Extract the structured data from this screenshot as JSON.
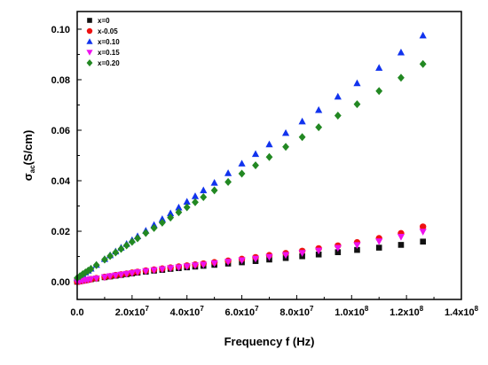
{
  "chart_data": {
    "type": "scatter",
    "xlabel": "Frequency f (Hz)",
    "ylabel_main": "σ",
    "ylabel_sub": "ac",
    "ylabel_unit": "(S/cm)",
    "xlim": [
      0,
      140000000.0
    ],
    "ylim": [
      -0.007,
      0.107
    ],
    "x_ticks": [
      {
        "value": 0,
        "base": "0.0",
        "exp": ""
      },
      {
        "value": 20000000.0,
        "base": "2.0x10",
        "exp": "7"
      },
      {
        "value": 40000000.0,
        "base": "4.0x10",
        "exp": "7"
      },
      {
        "value": 60000000.0,
        "base": "6.0x10",
        "exp": "7"
      },
      {
        "value": 80000000.0,
        "base": "8.0x10",
        "exp": "7"
      },
      {
        "value": 100000000.0,
        "base": "1.0x10",
        "exp": "8"
      },
      {
        "value": 120000000.0,
        "base": "1.2x10",
        "exp": "8"
      },
      {
        "value": 140000000.0,
        "base": "1.4x10",
        "exp": "8"
      }
    ],
    "y_ticks": [
      {
        "value": 0.0,
        "label": "0.00"
      },
      {
        "value": 0.02,
        "label": "0.02"
      },
      {
        "value": 0.04,
        "label": "0.04"
      },
      {
        "value": 0.06,
        "label": "0.06"
      },
      {
        "value": 0.08,
        "label": "0.08"
      },
      {
        "value": 0.1,
        "label": "0.10"
      }
    ],
    "legend_position": "top-left",
    "grid": false,
    "series": [
      {
        "name": "x=0",
        "marker": "square",
        "color": "#111111",
        "x": [
          0,
          1000000,
          2000000,
          3000000,
          4000000,
          5000000,
          7000000,
          10000000,
          12000000,
          14000000,
          16000000,
          18000000,
          20000000,
          22000000,
          25000000,
          28000000,
          31000000,
          34000000,
          37000000,
          40000000,
          43000000,
          46000000,
          50000000,
          55000000,
          60000000,
          65000000,
          70000000,
          76000000,
          82000000,
          88000000,
          95000000,
          102000000,
          110000000,
          118000000,
          126000000
        ],
        "y": [
          0.0,
          0.0002,
          0.0004,
          0.0006,
          0.0008,
          0.001,
          0.0013,
          0.0018,
          0.0021,
          0.0024,
          0.0027,
          0.003,
          0.0033,
          0.0036,
          0.004,
          0.0044,
          0.0047,
          0.0051,
          0.0054,
          0.0057,
          0.006,
          0.0063,
          0.0067,
          0.0072,
          0.0077,
          0.0082,
          0.0088,
          0.0094,
          0.0101,
          0.0108,
          0.0117,
          0.0126,
          0.0135,
          0.0146,
          0.0159
        ]
      },
      {
        "name": "x-0.05",
        "marker": "circle",
        "color": "#ee1111",
        "x": [
          0,
          1000000,
          2000000,
          3000000,
          4000000,
          5000000,
          7000000,
          10000000,
          12000000,
          14000000,
          16000000,
          18000000,
          20000000,
          22000000,
          25000000,
          28000000,
          31000000,
          34000000,
          37000000,
          40000000,
          43000000,
          46000000,
          50000000,
          55000000,
          60000000,
          65000000,
          70000000,
          76000000,
          82000000,
          88000000,
          95000000,
          102000000,
          110000000,
          118000000,
          126000000
        ],
        "y": [
          0.0,
          0.0002,
          0.0004,
          0.0006,
          0.0008,
          0.001,
          0.0014,
          0.0019,
          0.0022,
          0.0026,
          0.0029,
          0.0032,
          0.0036,
          0.0039,
          0.0044,
          0.0048,
          0.0052,
          0.0056,
          0.006,
          0.0064,
          0.0068,
          0.0072,
          0.0077,
          0.0083,
          0.009,
          0.0097,
          0.0105,
          0.0113,
          0.0122,
          0.0132,
          0.0143,
          0.0156,
          0.0172,
          0.0192,
          0.0218
        ]
      },
      {
        "name": "x=0.10",
        "marker": "triangle-up",
        "color": "#1133ee",
        "x": [
          0,
          1000000,
          2000000,
          3000000,
          4000000,
          5000000,
          7000000,
          10000000,
          12000000,
          14000000,
          16000000,
          18000000,
          20000000,
          22000000,
          25000000,
          28000000,
          31000000,
          34000000,
          37000000,
          40000000,
          43000000,
          46000000,
          50000000,
          55000000,
          60000000,
          65000000,
          70000000,
          76000000,
          82000000,
          88000000,
          95000000,
          102000000,
          110000000,
          118000000,
          126000000
        ],
        "y": [
          0.0015,
          0.0022,
          0.003,
          0.0037,
          0.0044,
          0.0052,
          0.0067,
          0.009,
          0.0105,
          0.012,
          0.0135,
          0.015,
          0.0165,
          0.018,
          0.0202,
          0.0225,
          0.0248,
          0.0271,
          0.0294,
          0.0317,
          0.0339,
          0.0362,
          0.0392,
          0.043,
          0.0468,
          0.0506,
          0.0544,
          0.0589,
          0.0635,
          0.068,
          0.0733,
          0.0786,
          0.0847,
          0.0908,
          0.0975
        ]
      },
      {
        "name": "x=0.15",
        "marker": "triangle-down",
        "color": "#ee11ee",
        "x": [
          0,
          1000000,
          2000000,
          3000000,
          4000000,
          5000000,
          7000000,
          10000000,
          12000000,
          14000000,
          16000000,
          18000000,
          20000000,
          22000000,
          25000000,
          28000000,
          31000000,
          34000000,
          37000000,
          40000000,
          43000000,
          46000000,
          50000000,
          55000000,
          60000000,
          65000000,
          70000000,
          76000000,
          82000000,
          88000000,
          95000000,
          102000000,
          110000000,
          118000000,
          126000000
        ],
        "y": [
          0.0,
          0.0002,
          0.0004,
          0.0006,
          0.0008,
          0.001,
          0.0013,
          0.0018,
          0.0022,
          0.0025,
          0.0028,
          0.0031,
          0.0034,
          0.0038,
          0.0042,
          0.0046,
          0.005,
          0.0054,
          0.0057,
          0.0061,
          0.0065,
          0.0068,
          0.0073,
          0.0079,
          0.0085,
          0.0091,
          0.0098,
          0.0106,
          0.0114,
          0.0123,
          0.0134,
          0.0145,
          0.016,
          0.0178,
          0.0198
        ]
      },
      {
        "name": "x=0.20",
        "marker": "diamond",
        "color": "#228822",
        "x": [
          0,
          1000000,
          2000000,
          3000000,
          4000000,
          5000000,
          7000000,
          10000000,
          12000000,
          14000000,
          16000000,
          18000000,
          20000000,
          22000000,
          25000000,
          28000000,
          31000000,
          34000000,
          37000000,
          40000000,
          43000000,
          46000000,
          50000000,
          55000000,
          60000000,
          65000000,
          70000000,
          76000000,
          82000000,
          88000000,
          95000000,
          102000000,
          110000000,
          118000000,
          126000000
        ],
        "y": [
          0.0015,
          0.0022,
          0.003,
          0.0037,
          0.0044,
          0.0051,
          0.0066,
          0.0088,
          0.0102,
          0.0116,
          0.013,
          0.0144,
          0.0158,
          0.0172,
          0.0193,
          0.0213,
          0.0234,
          0.0254,
          0.0275,
          0.0295,
          0.0315,
          0.0335,
          0.0362,
          0.0395,
          0.0428,
          0.0461,
          0.0494,
          0.0534,
          0.0573,
          0.0612,
          0.0658,
          0.0703,
          0.0755,
          0.0808,
          0.0862
        ]
      }
    ]
  }
}
